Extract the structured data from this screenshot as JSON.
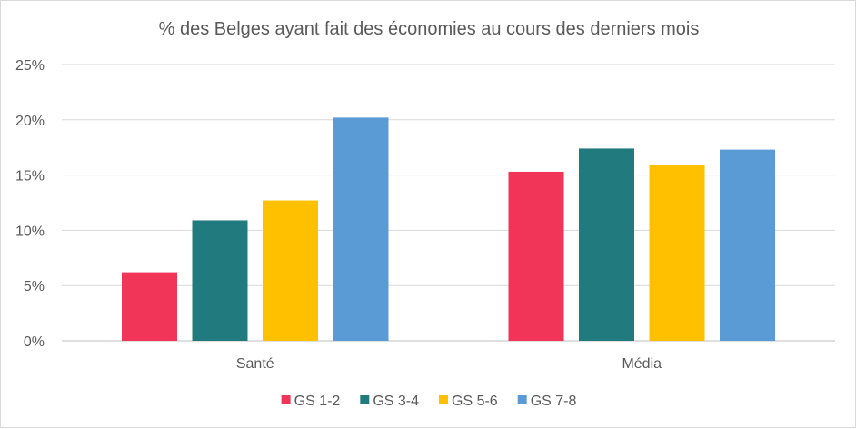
{
  "chart_data": {
    "type": "bar",
    "title": "% des Belges ayant fait des économies au cours des derniers mois",
    "xlabel": "",
    "ylabel": "",
    "categories": [
      "Santé",
      "Média"
    ],
    "series": [
      {
        "name": "GS 1-2",
        "color": "#f03558",
        "values": [
          6.2,
          15.3
        ]
      },
      {
        "name": "GS 3-4",
        "color": "#217b7e",
        "values": [
          10.9,
          17.4
        ]
      },
      {
        "name": "GS 5-6",
        "color": "#ffc000",
        "values": [
          12.7,
          15.9
        ]
      },
      {
        "name": "GS 7-8",
        "color": "#5b9bd5",
        "values": [
          20.2,
          17.3
        ]
      }
    ],
    "ylim": [
      0,
      25
    ],
    "yticks": [
      0,
      5,
      10,
      15,
      20,
      25
    ],
    "ytick_labels": [
      "0%",
      "5%",
      "10%",
      "15%",
      "20%",
      "25%"
    ],
    "grid": true,
    "legend_position": "bottom"
  }
}
